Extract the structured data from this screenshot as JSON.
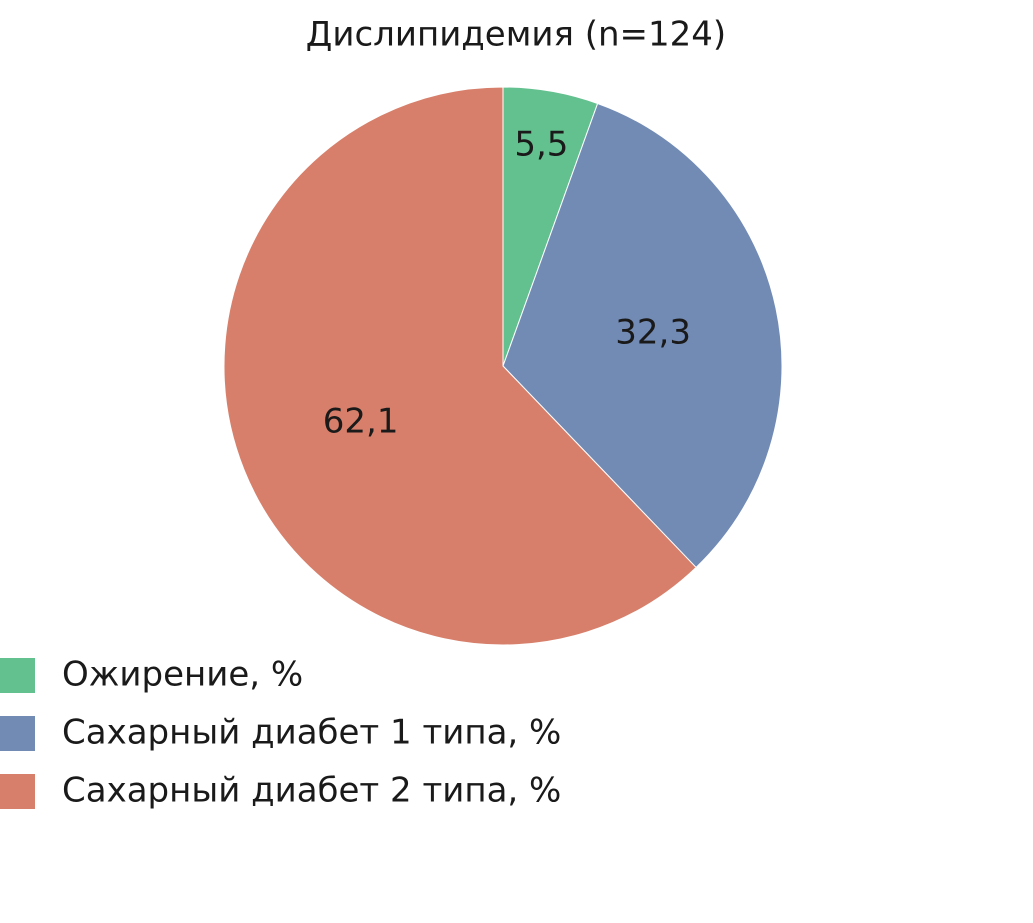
{
  "chart_data": {
    "type": "pie",
    "title": "Дислипидемия (n=124)",
    "categories": [
      "Ожирение, %",
      "Сахарный диабет 1 типа, %",
      "Сахарный диабет 2 типа, %"
    ],
    "values": [
      5.5,
      32.3,
      62.1
    ],
    "value_labels": [
      "5,5",
      "32,3",
      "62,1"
    ],
    "colors": [
      "#63c08f",
      "#728bb5",
      "#d77f6a"
    ],
    "legend": "bottom-left"
  }
}
